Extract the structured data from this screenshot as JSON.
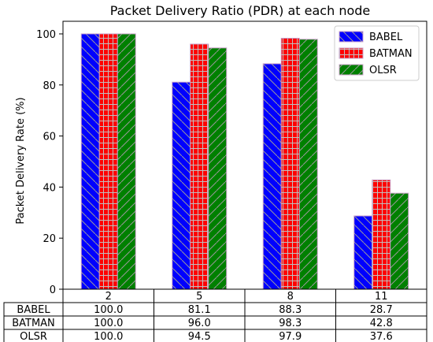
{
  "chart_data": {
    "type": "bar",
    "title": "Packet Delivery Ratio (PDR) at each node",
    "xlabel": "",
    "ylabel": "Packet Delivery Rate  (%)",
    "ylim": [
      0,
      105
    ],
    "yticks": [
      0,
      20,
      40,
      60,
      80,
      100
    ],
    "categories": [
      "2",
      "5",
      "8",
      "11"
    ],
    "series": [
      {
        "name": "BABEL",
        "values": [
          100.0,
          81.1,
          88.3,
          28.7
        ],
        "color": "#0000ff",
        "hatch": "diagonal"
      },
      {
        "name": "BATMAN",
        "values": [
          100.0,
          96.0,
          98.3,
          42.8
        ],
        "color": "#ff0000",
        "hatch": "grid"
      },
      {
        "name": "OLSR",
        "values": [
          100.0,
          94.5,
          97.9,
          37.6
        ],
        "color": "#008000",
        "hatch": "slanted"
      }
    ],
    "legend_position": "top-right",
    "grid": false,
    "table": {
      "rows": [
        {
          "label": "BABEL",
          "cells": [
            "100.0",
            "81.1",
            "88.3",
            "28.7"
          ]
        },
        {
          "label": "BATMAN",
          "cells": [
            "100.0",
            "96.0",
            "98.3",
            "42.8"
          ]
        },
        {
          "label": "OLSR",
          "cells": [
            "100.0",
            "94.5",
            "97.9",
            "37.6"
          ]
        }
      ]
    }
  }
}
